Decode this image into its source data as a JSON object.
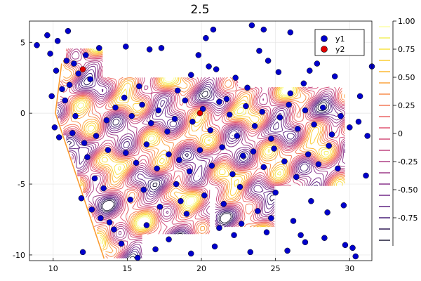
{
  "chart_data": {
    "type": "scatter",
    "title": "2.5",
    "xlabel": "",
    "ylabel": "",
    "xlim": [
      8.4,
      31.5
    ],
    "ylim": [
      -10.4,
      6.5
    ],
    "xticks": [
      10,
      15,
      20,
      25,
      30
    ],
    "yticks": [
      5,
      0,
      -5,
      -10
    ],
    "grid": true,
    "legend_position": "top-right",
    "colorbar": {
      "range": [
        -1.0,
        1.0
      ],
      "ticks": [
        1.0,
        0.75,
        0.5,
        0.25,
        0,
        -0.25,
        -0.5,
        -0.75
      ],
      "tick_labels": [
        "1.00",
        "0.75",
        "0.50",
        "0.25",
        "0",
        "-0.25",
        "-0.50",
        "-0.75"
      ],
      "levels": [
        -0.95,
        -0.85,
        -0.75,
        -0.65,
        -0.55,
        -0.45,
        -0.35,
        -0.25,
        -0.15,
        -0.05,
        0.05,
        0.15,
        0.25,
        0.35,
        0.45,
        0.55,
        0.65,
        0.75,
        0.85,
        0.95
      ],
      "colors": [
        "#0d0a29",
        "#220c4a",
        "#3b0f6f",
        "#54137b",
        "#6a1b7f",
        "#802582",
        "#952c80",
        "#a8327d",
        "#bc3978",
        "#cf4070",
        "#de4968",
        "#ea5a5a",
        "#f3704d",
        "#f8863f",
        "#fb9c31",
        "#fcb324",
        "#fbca24",
        "#f7e034",
        "#f1ef55",
        "#fcffa4"
      ]
    },
    "series": [
      {
        "name": "y1",
        "color": "#0000cc",
        "points": [
          [
            8.9,
            4.8
          ],
          [
            9.6,
            5.5
          ],
          [
            10.3,
            5.1
          ],
          [
            11.0,
            5.8
          ],
          [
            11.4,
            3.5
          ],
          [
            11.7,
            2.8
          ],
          [
            12.5,
            2.4
          ],
          [
            11.1,
            2.0
          ],
          [
            10.6,
            1.7
          ],
          [
            9.9,
            1.2
          ],
          [
            10.1,
            -1.0
          ],
          [
            10.4,
            -1.7
          ],
          [
            11.3,
            -1.4
          ],
          [
            12.1,
            -2.1
          ],
          [
            12.9,
            -1.6
          ],
          [
            13.6,
            -0.5
          ],
          [
            14.2,
            0.4
          ],
          [
            14.8,
            1.1
          ],
          [
            15.3,
            -0.2
          ],
          [
            16.0,
            0.6
          ],
          [
            16.6,
            -0.7
          ],
          [
            17.1,
            0.2
          ],
          [
            17.7,
            -1.3
          ],
          [
            18.2,
            -0.4
          ],
          [
            18.9,
            0.9
          ],
          [
            19.4,
            -0.6
          ],
          [
            20.1,
            0.3
          ],
          [
            20.6,
            -1.2
          ],
          [
            21.2,
            0.8
          ],
          [
            21.9,
            -0.1
          ],
          [
            22.4,
            -1.6
          ],
          [
            23.0,
            0.5
          ],
          [
            23.6,
            -0.9
          ],
          [
            24.1,
            0.1
          ],
          [
            24.7,
            -1.8
          ],
          [
            25.3,
            -0.3
          ],
          [
            25.9,
            0.6
          ],
          [
            26.5,
            -1.1
          ],
          [
            27.0,
            0.2
          ],
          [
            27.6,
            -0.8
          ],
          [
            28.2,
            0.4
          ],
          [
            28.8,
            -1.5
          ],
          [
            29.4,
            -0.2
          ],
          [
            30.0,
            -1.0
          ],
          [
            30.6,
            -0.6
          ],
          [
            14.9,
            -2.8
          ],
          [
            15.6,
            -3.5
          ],
          [
            16.3,
            -2.2
          ],
          [
            17.0,
            -3.9
          ],
          [
            17.8,
            -2.9
          ],
          [
            18.5,
            -3.3
          ],
          [
            19.2,
            -4.1
          ],
          [
            19.9,
            -2.6
          ],
          [
            20.7,
            -3.7
          ],
          [
            21.4,
            -2.4
          ],
          [
            22.1,
            -4.3
          ],
          [
            22.8,
            -3.0
          ],
          [
            23.5,
            -2.7
          ],
          [
            24.2,
            -3.8
          ],
          [
            24.9,
            -2.5
          ],
          [
            25.6,
            -3.4
          ],
          [
            26.4,
            -4.5
          ],
          [
            27.2,
            -2.9
          ],
          [
            27.9,
            -3.6
          ],
          [
            28.6,
            -2.3
          ],
          [
            29.2,
            -3.9
          ],
          [
            12.3,
            -3.1
          ],
          [
            12.8,
            -4.6
          ],
          [
            13.4,
            -5.3
          ],
          [
            11.9,
            -6.0
          ],
          [
            12.6,
            -6.8
          ],
          [
            13.2,
            -7.4
          ],
          [
            14.1,
            -8.2
          ],
          [
            15.2,
            -6.1
          ],
          [
            16.1,
            -5.4
          ],
          [
            17.2,
            -6.6
          ],
          [
            18.3,
            -5.0
          ],
          [
            19.0,
            -7.1
          ],
          [
            20.2,
            -5.8
          ],
          [
            21.5,
            -6.4
          ],
          [
            22.6,
            -5.2
          ],
          [
            23.8,
            -6.9
          ],
          [
            25.0,
            -5.6
          ],
          [
            26.2,
            -7.6
          ],
          [
            27.4,
            -6.2
          ],
          [
            28.5,
            -7.0
          ],
          [
            29.6,
            -6.5
          ],
          [
            14.6,
            -9.2
          ],
          [
            16.9,
            -9.6
          ],
          [
            17.8,
            -8.9
          ],
          [
            19.3,
            -9.9
          ],
          [
            20.9,
            -9.4
          ],
          [
            22.2,
            -8.6
          ],
          [
            23.3,
            -9.8
          ],
          [
            24.4,
            -8.4
          ],
          [
            25.8,
            -9.7
          ],
          [
            27.0,
            -9.1
          ],
          [
            28.3,
            -8.8
          ],
          [
            29.7,
            -9.3
          ],
          [
            30.2,
            -9.5
          ],
          [
            30.4,
            -10.1
          ],
          [
            31.1,
            -4.4
          ],
          [
            31.2,
            -1.6
          ],
          [
            30.7,
            1.2
          ],
          [
            31.5,
            3.3
          ],
          [
            29.0,
            2.6
          ],
          [
            27.8,
            3.5
          ],
          [
            26.9,
            2.1
          ],
          [
            26.0,
            1.4
          ],
          [
            25.2,
            2.9
          ],
          [
            24.5,
            3.7
          ],
          [
            23.9,
            4.4
          ],
          [
            23.1,
            1.8
          ],
          [
            22.3,
            2.5
          ],
          [
            21.7,
            1.0
          ],
          [
            21.0,
            3.1
          ],
          [
            20.5,
            3.3
          ],
          [
            19.8,
            4.1
          ],
          [
            19.3,
            2.7
          ],
          [
            18.4,
            1.6
          ],
          [
            17.3,
            4.6
          ],
          [
            16.5,
            4.5
          ],
          [
            15.8,
            1.9
          ],
          [
            14.9,
            4.7
          ],
          [
            13.1,
            4.6
          ],
          [
            12.2,
            4.1
          ],
          [
            10.9,
            3.7
          ],
          [
            9.8,
            4.2
          ],
          [
            20.3,
            5.3
          ],
          [
            20.8,
            5.9
          ],
          [
            23.4,
            6.2
          ],
          [
            24.2,
            5.9
          ],
          [
            26.0,
            5.7
          ],
          [
            30.5,
            5.0
          ],
          [
            29.3,
            5.5
          ],
          [
            28.1,
            4.3
          ],
          [
            27.3,
            3.0
          ],
          [
            22.7,
            -7.8
          ],
          [
            21.2,
            -8.1
          ],
          [
            13.8,
            -7.7
          ],
          [
            16.3,
            -7.9
          ],
          [
            18.6,
            -6.2
          ],
          [
            24.7,
            -7.4
          ],
          [
            26.7,
            -8.6
          ],
          [
            12.0,
            -9.8
          ],
          [
            15.7,
            -10.2
          ],
          [
            13.7,
            -2.6
          ],
          [
            11.5,
            -0.2
          ],
          [
            10.8,
            0.9
          ],
          [
            10.2,
            3.0
          ]
        ]
      },
      {
        "name": "y2",
        "color": "#e00000",
        "points": [
          [
            12.0,
            3.1
          ],
          [
            19.9,
            0.0
          ]
        ]
      }
    ]
  }
}
